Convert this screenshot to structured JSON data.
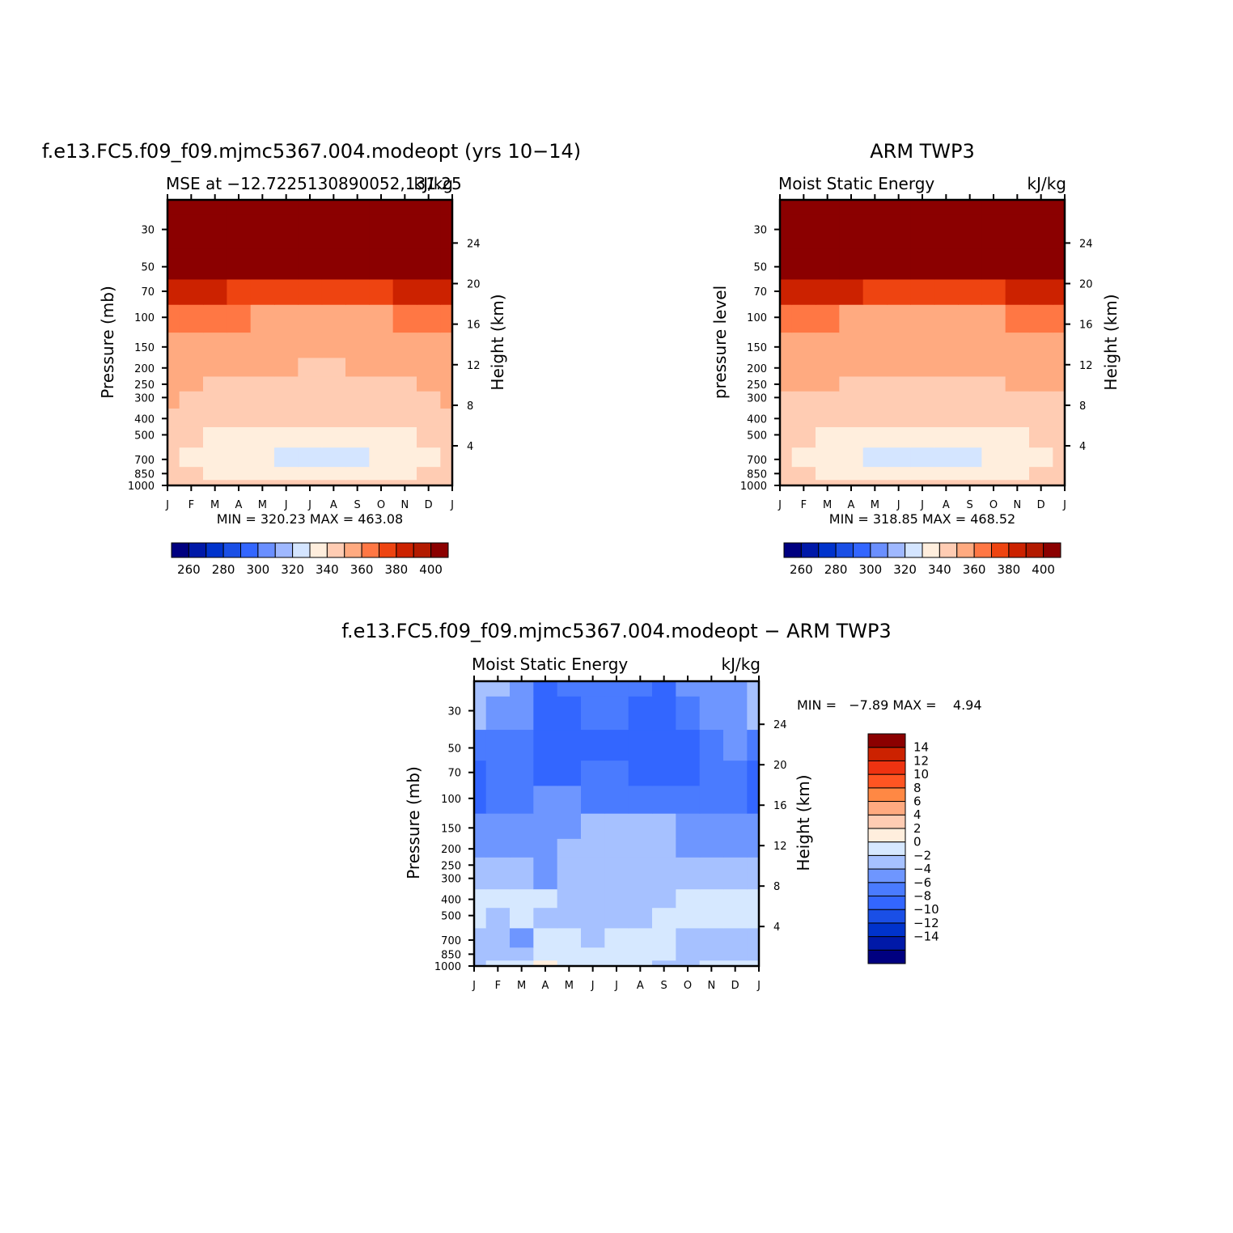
{
  "page": {
    "background": "#ffffff"
  },
  "colors": {
    "abs_palette": [
      "#000080",
      "#0019a8",
      "#0033cc",
      "#1a4fe6",
      "#3366ff",
      "#6a8fff",
      "#9fb8ff",
      "#d4e5ff",
      "#ffeedd",
      "#ffccb3",
      "#ffaa80",
      "#ff7744",
      "#ee4411",
      "#cc2200",
      "#b31a00",
      "#8b0000"
    ],
    "diff_palette": [
      "#000080",
      "#0019a8",
      "#0033cc",
      "#1a4fe6",
      "#3366ff",
      "#4a7bff",
      "#6e96ff",
      "#a6c1ff",
      "#d6e8ff",
      "#ffeedd",
      "#ffccb3",
      "#ffaa80",
      "#ff8844",
      "#ff5522",
      "#ee3311",
      "#cc2200",
      "#8b0000"
    ],
    "frame": "#000000"
  },
  "chart_data": [
    {
      "id": "model",
      "type": "heatmap",
      "title": "f.e13.FC5.f09_f09.mjmc5367.004.modeopt (yrs 10−14)",
      "left_label": "MSE at −12.7225130890052,131.25",
      "right_label": "kJ/kg",
      "ylabel": "Pressure (mb)",
      "ylabel_right": "Height (km)",
      "x_ticklabels": [
        "J",
        "F",
        "M",
        "A",
        "M",
        "J",
        "J",
        "A",
        "S",
        "O",
        "N",
        "D",
        "J"
      ],
      "y_ticks": [
        1000,
        850,
        700,
        500,
        400,
        300,
        250,
        200,
        150,
        100,
        70,
        50,
        30
      ],
      "y_log": true,
      "y_range": [
        1000,
        20
      ],
      "height_ticks": [
        4,
        8,
        12,
        16,
        20,
        24
      ],
      "stats": "MIN = 320.23 MAX = 463.08",
      "colorbar": {
        "orientation": "horizontal",
        "labels": [
          "260",
          "280",
          "300",
          "320",
          "340",
          "360",
          "380",
          "400"
        ],
        "levels": [
          250,
          260,
          270,
          280,
          290,
          300,
          310,
          320,
          330,
          340,
          350,
          360,
          370,
          380,
          390,
          400
        ]
      },
      "x": [
        0,
        1,
        2,
        3,
        4,
        5,
        6,
        7,
        8,
        9,
        10,
        11,
        12
      ],
      "p": [
        1000,
        850,
        700,
        500,
        400,
        300,
        250,
        200,
        150,
        100,
        70,
        50,
        30,
        20
      ],
      "z": [
        [
          336,
          336,
          336,
          334,
          333,
          333,
          333,
          333,
          333,
          334,
          336,
          337,
          336
        ],
        [
          332,
          330,
          327,
          325,
          324,
          323,
          323,
          323,
          323,
          324,
          327,
          330,
          332
        ],
        [
          333,
          328,
          324,
          321,
          320,
          319,
          318,
          318,
          319,
          321,
          324,
          329,
          333
        ],
        [
          333,
          331,
          329,
          327,
          325,
          323,
          323,
          323,
          324,
          326,
          328,
          330,
          333
        ],
        [
          336,
          335,
          334,
          333,
          332,
          331,
          331,
          331,
          331,
          332,
          334,
          335,
          336
        ],
        [
          340,
          338,
          337,
          336,
          335,
          334,
          333,
          333,
          334,
          336,
          338,
          339,
          340
        ],
        [
          341,
          340,
          339,
          338,
          337,
          336,
          336,
          335,
          336,
          337,
          339,
          340,
          341
        ],
        [
          342,
          342,
          341,
          341,
          340,
          340,
          339,
          339,
          340,
          341,
          342,
          342,
          342
        ],
        [
          345,
          345,
          345,
          345,
          344,
          344,
          344,
          343,
          344,
          345,
          345,
          345,
          345
        ],
        [
          352,
          352,
          351,
          350,
          349,
          348,
          347,
          348,
          348,
          349,
          350,
          352,
          352
        ],
        [
          372,
          371,
          370,
          369,
          368,
          366,
          365,
          365,
          366,
          368,
          370,
          371,
          372
        ],
        [
          400,
          400,
          399,
          398,
          397,
          396,
          395,
          395,
          396,
          397,
          398,
          400,
          400
        ],
        [
          440,
          440,
          440,
          439,
          439,
          438,
          438,
          438,
          438,
          439,
          440,
          440,
          440
        ],
        [
          460,
          460,
          460,
          459,
          459,
          458,
          458,
          458,
          458,
          459,
          460,
          460,
          460
        ]
      ]
    },
    {
      "id": "obs",
      "type": "heatmap",
      "title": "ARM TWP3",
      "left_label": "Moist Static Energy",
      "right_label": "kJ/kg",
      "ylabel": "pressure level",
      "ylabel_right": "Height (km)",
      "x_ticklabels": [
        "J",
        "F",
        "M",
        "A",
        "M",
        "J",
        "J",
        "A",
        "S",
        "O",
        "N",
        "D",
        "J"
      ],
      "y_ticks": [
        1000,
        850,
        700,
        500,
        400,
        300,
        250,
        200,
        150,
        100,
        70,
        50,
        30
      ],
      "y_log": true,
      "y_range": [
        1000,
        20
      ],
      "height_ticks": [
        4,
        8,
        12,
        16,
        20,
        24
      ],
      "stats": "MIN = 318.85 MAX = 468.52",
      "colorbar": {
        "orientation": "horizontal",
        "labels": [
          "260",
          "280",
          "300",
          "320",
          "340",
          "360",
          "380",
          "400"
        ],
        "levels": [
          250,
          260,
          270,
          280,
          290,
          300,
          310,
          320,
          330,
          340,
          350,
          360,
          370,
          380,
          390,
          400
        ]
      },
      "x": [
        0,
        1,
        2,
        3,
        4,
        5,
        6,
        7,
        8,
        9,
        10,
        11,
        12
      ],
      "p": [
        1000,
        850,
        700,
        500,
        400,
        300,
        250,
        200,
        150,
        100,
        70,
        50,
        30,
        20
      ],
      "z": [
        [
          336,
          336,
          335,
          333,
          332,
          331,
          331,
          331,
          332,
          333,
          335,
          336,
          336
        ],
        [
          332,
          330,
          326,
          323,
          322,
          321,
          321,
          321,
          322,
          323,
          326,
          330,
          332
        ],
        [
          333,
          328,
          322,
          320,
          319,
          318,
          317,
          317,
          318,
          320,
          322,
          329,
          333
        ],
        [
          333,
          331,
          328,
          326,
          324,
          322,
          322,
          322,
          323,
          325,
          327,
          330,
          333
        ],
        [
          336,
          335,
          334,
          333,
          332,
          331,
          331,
          331,
          331,
          332,
          334,
          335,
          336
        ],
        [
          339,
          338,
          337,
          336,
          335,
          334,
          334,
          334,
          334,
          335,
          337,
          338,
          339
        ],
        [
          341,
          341,
          340,
          339,
          338,
          338,
          337,
          337,
          338,
          339,
          340,
          341,
          341
        ],
        [
          342,
          342,
          342,
          341,
          341,
          341,
          340,
          340,
          341,
          341,
          342,
          342,
          342
        ],
        [
          344,
          344,
          344,
          344,
          344,
          344,
          344,
          344,
          344,
          344,
          344,
          344,
          344
        ],
        [
          351,
          350,
          350,
          349,
          348,
          348,
          347,
          347,
          348,
          349,
          350,
          350,
          351
        ],
        [
          372,
          371,
          370,
          370,
          369,
          368,
          367,
          367,
          368,
          369,
          370,
          371,
          372
        ],
        [
          398,
          398,
          397,
          396,
          395,
          394,
          393,
          393,
          394,
          395,
          396,
          398,
          398
        ],
        [
          440,
          440,
          440,
          440,
          439,
          439,
          438,
          438,
          439,
          439,
          440,
          440,
          440
        ],
        [
          465,
          465,
          465,
          464,
          464,
          463,
          463,
          463,
          463,
          464,
          465,
          465,
          465
        ]
      ]
    },
    {
      "id": "diff",
      "type": "heatmap",
      "title": "f.e13.FC5.f09_f09.mjmc5367.004.modeopt − ARM TWP3",
      "left_label": "Moist Static Energy",
      "right_label": "kJ/kg",
      "ylabel": "Pressure (mb)",
      "ylabel_right": "Height (km)",
      "x_ticklabels": [
        "J",
        "F",
        "M",
        "A",
        "M",
        "J",
        "J",
        "A",
        "S",
        "O",
        "N",
        "D",
        "J"
      ],
      "y_ticks": [
        1000,
        850,
        700,
        500,
        400,
        300,
        250,
        200,
        150,
        100,
        70,
        50,
        30
      ],
      "y_log": true,
      "y_range": [
        1000,
        20
      ],
      "height_ticks": [
        4,
        8,
        12,
        16,
        20,
        24
      ],
      "stats": "MIN =   −7.89 MAX =    4.94",
      "colorbar": {
        "orientation": "vertical",
        "labels": [
          "14",
          "12",
          "10",
          "8",
          "6",
          "4",
          "2",
          "0",
          "−2",
          "−4",
          "−6",
          "−8",
          "−10",
          "−12",
          "−14"
        ],
        "levels": [
          -14,
          -12,
          -10,
          -8,
          -6,
          -4,
          -2,
          0,
          2,
          4,
          6,
          8,
          10,
          12,
          14
        ]
      },
      "x": [
        0,
        1,
        2,
        3,
        4,
        5,
        6,
        7,
        8,
        9,
        10,
        11,
        12
      ],
      "p": [
        1000,
        850,
        700,
        500,
        400,
        300,
        250,
        200,
        150,
        100,
        70,
        50,
        30,
        20
      ],
      "z": [
        [
          -0.5,
          0.5,
          0.8,
          2.5,
          0.8,
          0.3,
          0.5,
          0.5,
          -0.5,
          -0.5,
          0.5,
          0.8,
          0.4
        ],
        [
          -1.0,
          -0.8,
          -0.5,
          1.0,
          0.5,
          0.2,
          0.5,
          1.5,
          0.3,
          -0.5,
          -0.5,
          -0.5,
          -0.5
        ],
        [
          -1.0,
          -1.5,
          -2.5,
          0.5,
          1.5,
          -0.5,
          1.0,
          1.0,
          0.2,
          -0.8,
          -1.0,
          -1.8,
          -1.0
        ],
        [
          0.5,
          -0.5,
          0.5,
          -0.5,
          -0.8,
          -1.0,
          -1.0,
          -1.0,
          0.5,
          0.5,
          0.5,
          0.8,
          0.5
        ],
        [
          0.5,
          0.8,
          0.5,
          0.5,
          -0.5,
          -1.0,
          -1.0,
          -1.0,
          -0.5,
          0.5,
          0.5,
          0.8,
          0.5
        ],
        [
          -1.0,
          -1.0,
          -1.0,
          -2.5,
          -1.5,
          -1.0,
          -1.0,
          -1.0,
          -1.5,
          -1.5,
          -1.0,
          -1.0,
          -1.0
        ],
        [
          -1.5,
          -1.5,
          -1.5,
          -3.0,
          -1.8,
          -1.5,
          -1.5,
          -1.5,
          -1.5,
          -1.8,
          -1.5,
          -1.5,
          -1.5
        ],
        [
          -2.5,
          -2.5,
          -2.8,
          -2.5,
          -1.8,
          -1.5,
          -1.5,
          -1.5,
          -1.8,
          -2.5,
          -3.0,
          -3.2,
          -2.5
        ],
        [
          -3.0,
          -3.5,
          -3.5,
          -3.5,
          -3.0,
          -1.5,
          -1.5,
          -1.5,
          -2.0,
          -3.0,
          -3.5,
          -3.5,
          -3.0
        ],
        [
          -6.5,
          -5.5,
          -4.5,
          -4.0,
          -4.0,
          -4.5,
          -4.5,
          -4.5,
          -4.5,
          -4.5,
          -4.5,
          -4.5,
          -6.5
        ],
        [
          -6.5,
          -5.5,
          -4.5,
          -6.5,
          -6.5,
          -6.0,
          -5.5,
          -6.5,
          -6.5,
          -6.5,
          -5.5,
          -4.5,
          -6.5
        ],
        [
          -4.5,
          -4.5,
          -4.5,
          -6.5,
          -6.5,
          -7.0,
          -7.0,
          -7.0,
          -7.0,
          -6.5,
          -5.5,
          -4.0,
          -4.5
        ],
        [
          -2.0,
          -2.5,
          -2.5,
          -6.5,
          -6.5,
          -6.0,
          -6.0,
          -6.5,
          -6.5,
          -4.5,
          -3.5,
          -2.5,
          -2.0
        ],
        [
          -1.5,
          -1.5,
          -3.0,
          -6.5,
          -6.0,
          -6.0,
          -6.0,
          -6.0,
          -6.5,
          -3.5,
          -3.5,
          -2.5,
          -1.5
        ]
      ]
    }
  ]
}
